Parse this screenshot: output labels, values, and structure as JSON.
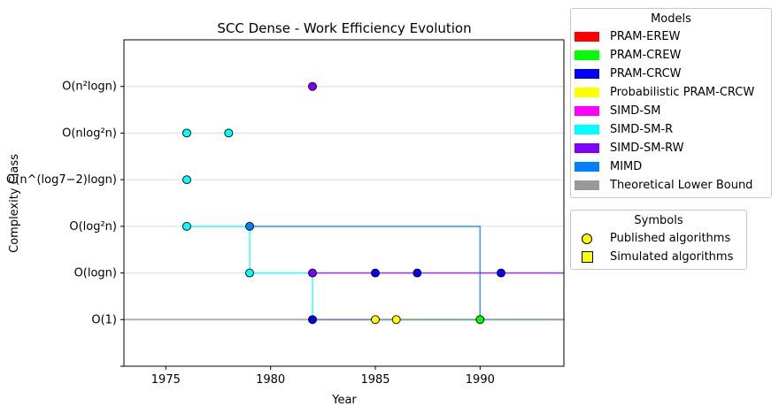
{
  "chart_data": {
    "type": "scatter",
    "title": "SCC Dense - Work Efficiency Evolution",
    "xlabel": "Year",
    "ylabel": "Complexity Class",
    "xlim": [
      1973,
      1994
    ],
    "x_ticks": [
      1975,
      1980,
      1985,
      1990
    ],
    "ylim": [
      -1,
      6
    ],
    "y_categories": [
      "O(1)",
      "O(logn)",
      "O(log²n)",
      "O(n^(log7−2)logn)",
      "O(nlog²n)",
      "O(n²logn)"
    ],
    "grid": "horizontal",
    "legend_position": "outside-right",
    "series": [
      {
        "name": "PRAM-EREW",
        "color": "#ff0000",
        "points": []
      },
      {
        "name": "PRAM-CREW",
        "color": "#00ff00",
        "points": [
          [
            1990,
            0
          ]
        ]
      },
      {
        "name": "PRAM-CRCW",
        "color": "#0000ff",
        "points": [
          [
            1982,
            0
          ],
          [
            1985,
            1
          ],
          [
            1987,
            1
          ],
          [
            1991,
            1
          ]
        ]
      },
      {
        "name": "Probabilistic PRAM-CRCW",
        "color": "#ffff00",
        "points": [
          [
            1985,
            0
          ],
          [
            1986,
            0
          ]
        ]
      },
      {
        "name": "SIMD-SM",
        "color": "#ff00ff",
        "points": []
      },
      {
        "name": "SIMD-SM-R",
        "color": "#00ffff",
        "points": [
          [
            1976,
            2
          ],
          [
            1976,
            3
          ],
          [
            1976,
            4
          ],
          [
            1978,
            4
          ],
          [
            1979,
            1
          ]
        ]
      },
      {
        "name": "SIMD-SM-RW",
        "color": "#8000ff",
        "points": [
          [
            1982,
            5
          ],
          [
            1982,
            1
          ]
        ]
      },
      {
        "name": "MIMD",
        "color": "#0080ff",
        "points": [
          [
            1979,
            2
          ]
        ]
      },
      {
        "name": "Theoretical Lower Bound",
        "color": "#999999",
        "points": []
      }
    ],
    "frontier_lines": [
      {
        "color": "#00ffff",
        "steps": [
          [
            1976,
            2
          ],
          [
            1979,
            2
          ],
          [
            1979,
            1
          ],
          [
            1982,
            1
          ],
          [
            1982,
            0
          ]
        ]
      },
      {
        "color": "#0080ff",
        "steps": [
          [
            1979,
            2
          ],
          [
            1990,
            2
          ],
          [
            1990,
            0
          ],
          [
            1994,
            0
          ]
        ]
      },
      {
        "color": "#8000ff",
        "steps": [
          [
            1982,
            1
          ],
          [
            1994,
            1
          ]
        ]
      },
      {
        "color": "#0000ff",
        "steps": [
          [
            1982,
            0
          ],
          [
            1990,
            0
          ]
        ]
      },
      {
        "color": "#00ff00",
        "steps": [
          [
            1985,
            0
          ],
          [
            1990,
            0
          ]
        ]
      },
      {
        "color": "#999999",
        "steps": [
          [
            1973,
            0
          ],
          [
            1994,
            0
          ]
        ]
      }
    ]
  },
  "legend_models": {
    "title": "Models",
    "items": [
      {
        "label": "PRAM-EREW",
        "color": "#ff0000"
      },
      {
        "label": "PRAM-CREW",
        "color": "#00ff00"
      },
      {
        "label": "PRAM-CRCW",
        "color": "#0000ff"
      },
      {
        "label": "Probabilistic PRAM-CRCW",
        "color": "#ffff00"
      },
      {
        "label": "SIMD-SM",
        "color": "#ff00ff"
      },
      {
        "label": "SIMD-SM-R",
        "color": "#00ffff"
      },
      {
        "label": "SIMD-SM-RW",
        "color": "#8000ff"
      },
      {
        "label": "MIMD",
        "color": "#0080ff"
      },
      {
        "label": "Theoretical Lower Bound",
        "color": "#999999"
      }
    ]
  },
  "legend_symbols": {
    "title": "Symbols",
    "published_label": "Published algorithms",
    "simulated_label": "Simulated algorithms"
  }
}
